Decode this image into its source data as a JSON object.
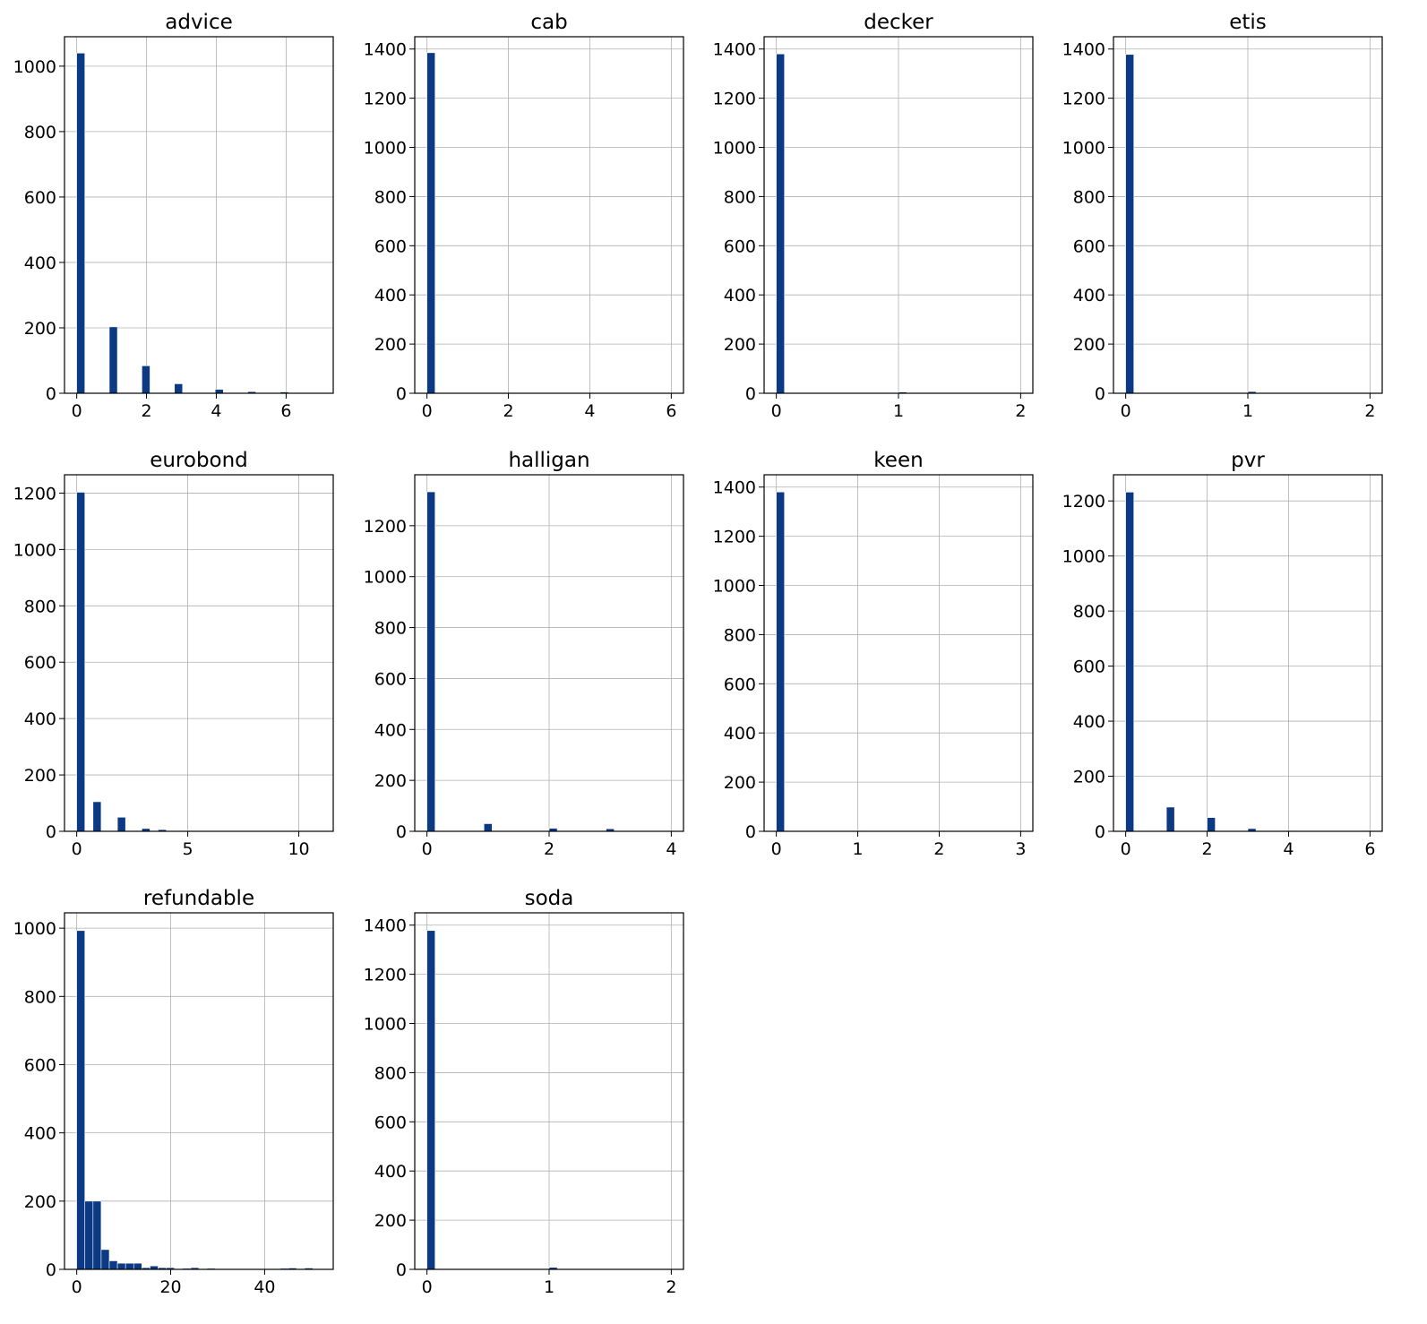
{
  "bar_color": "#0b3984",
  "bar_edge_color": "#ffffff",
  "grid_color": "#b0b0b0",
  "chart_data": [
    {
      "type": "bar",
      "title": "advice",
      "grid": true,
      "xlim": [
        -0.35,
        7.35
      ],
      "ylim": [
        0,
        1090
      ],
      "xticks": [
        0,
        2,
        4,
        6
      ],
      "yticks": [
        0,
        200,
        400,
        600,
        800,
        1000
      ],
      "bin_width": 0.233,
      "bins": [
        {
          "x0": 0.0,
          "count": 1040
        },
        {
          "x0": 0.933,
          "count": 203
        },
        {
          "x0": 1.867,
          "count": 84
        },
        {
          "x0": 2.8,
          "count": 29
        },
        {
          "x0": 3.967,
          "count": 12
        },
        {
          "x0": 4.9,
          "count": 5
        },
        {
          "x0": 5.833,
          "count": 4
        },
        {
          "x0": 6.767,
          "count": 2
        }
      ]
    },
    {
      "type": "bar",
      "title": "cab",
      "grid": true,
      "xlim": [
        -0.3,
        6.3
      ],
      "ylim": [
        0,
        1450
      ],
      "xticks": [
        0,
        2,
        4,
        6
      ],
      "yticks": [
        0,
        200,
        400,
        600,
        800,
        1000,
        1200,
        1400
      ],
      "bin_width": 0.2,
      "bins": [
        {
          "x0": 0.0,
          "count": 1385
        }
      ]
    },
    {
      "type": "bar",
      "title": "decker",
      "grid": true,
      "xlim": [
        -0.1,
        2.1
      ],
      "ylim": [
        0,
        1450
      ],
      "xticks": [
        0,
        1,
        2
      ],
      "yticks": [
        0,
        200,
        400,
        600,
        800,
        1000,
        1200,
        1400
      ],
      "bin_width": 0.0667,
      "bins": [
        {
          "x0": 0.0,
          "count": 1380
        },
        {
          "x0": 1.0,
          "count": 5
        },
        {
          "x0": 1.933,
          "count": 1
        }
      ]
    },
    {
      "type": "bar",
      "title": "etis",
      "grid": true,
      "xlim": [
        -0.1,
        2.1
      ],
      "ylim": [
        0,
        1450
      ],
      "xticks": [
        0,
        1,
        2
      ],
      "yticks": [
        0,
        200,
        400,
        600,
        800,
        1000,
        1200,
        1400
      ],
      "bin_width": 0.0667,
      "bins": [
        {
          "x0": 0.0,
          "count": 1378
        },
        {
          "x0": 1.0,
          "count": 7
        },
        {
          "x0": 1.933,
          "count": 1
        }
      ]
    },
    {
      "type": "bar",
      "title": "eurobond",
      "grid": true,
      "xlim": [
        -0.55,
        11.55
      ],
      "ylim": [
        0,
        1265
      ],
      "xticks": [
        0,
        5,
        10
      ],
      "yticks": [
        0,
        200,
        400,
        600,
        800,
        1000,
        1200
      ],
      "bin_width": 0.367,
      "bins": [
        {
          "x0": 0.0,
          "count": 1203
        },
        {
          "x0": 0.733,
          "count": 105
        },
        {
          "x0": 1.833,
          "count": 50
        },
        {
          "x0": 2.933,
          "count": 10
        },
        {
          "x0": 3.667,
          "count": 6
        },
        {
          "x0": 4.767,
          "count": 2
        },
        {
          "x0": 5.867,
          "count": 1
        },
        {
          "x0": 10.633,
          "count": 1
        }
      ]
    },
    {
      "type": "bar",
      "title": "halligan",
      "grid": true,
      "xlim": [
        -0.2,
        4.2
      ],
      "ylim": [
        0,
        1400
      ],
      "xticks": [
        0,
        2,
        4
      ],
      "yticks": [
        0,
        200,
        400,
        600,
        800,
        1000,
        1200
      ],
      "bin_width": 0.133,
      "bins": [
        {
          "x0": 0.0,
          "count": 1333
        },
        {
          "x0": 0.933,
          "count": 30
        },
        {
          "x0": 2.0,
          "count": 12
        },
        {
          "x0": 2.933,
          "count": 10
        },
        {
          "x0": 3.867,
          "count": 1
        }
      ]
    },
    {
      "type": "bar",
      "title": "keen",
      "grid": true,
      "xlim": [
        -0.15,
        3.15
      ],
      "ylim": [
        0,
        1450
      ],
      "xticks": [
        0,
        1,
        2,
        3
      ],
      "yticks": [
        0,
        200,
        400,
        600,
        800,
        1000,
        1200,
        1400
      ],
      "bin_width": 0.1,
      "bins": [
        {
          "x0": 0.0,
          "count": 1380
        },
        {
          "x0": 1.0,
          "count": 3
        },
        {
          "x0": 2.0,
          "count": 2
        },
        {
          "x0": 2.9,
          "count": 1
        }
      ]
    },
    {
      "type": "bar",
      "title": "pvr",
      "grid": true,
      "xlim": [
        -0.3,
        6.3
      ],
      "ylim": [
        0,
        1295
      ],
      "xticks": [
        0,
        2,
        4,
        6
      ],
      "yticks": [
        0,
        200,
        400,
        600,
        800,
        1000,
        1200
      ],
      "bin_width": 0.2,
      "bins": [
        {
          "x0": 0.0,
          "count": 1232
        },
        {
          "x0": 1.0,
          "count": 88
        },
        {
          "x0": 2.0,
          "count": 50
        },
        {
          "x0": 3.0,
          "count": 10
        },
        {
          "x0": 4.0,
          "count": 2
        },
        {
          "x0": 5.8,
          "count": 2
        }
      ]
    },
    {
      "type": "bar",
      "title": "refundable",
      "grid": true,
      "xlim": [
        -2.6,
        54.6
      ],
      "ylim": [
        0,
        1045
      ],
      "xticks": [
        0,
        20,
        40
      ],
      "yticks": [
        0,
        200,
        400,
        600,
        800,
        1000
      ],
      "bin_width": 1.733,
      "bins": [
        {
          "x0": 0.0,
          "count": 993
        },
        {
          "x0": 1.733,
          "count": 200
        },
        {
          "x0": 3.467,
          "count": 200
        },
        {
          "x0": 5.2,
          "count": 58
        },
        {
          "x0": 6.933,
          "count": 25
        },
        {
          "x0": 8.667,
          "count": 18
        },
        {
          "x0": 10.4,
          "count": 18
        },
        {
          "x0": 12.133,
          "count": 18
        },
        {
          "x0": 13.867,
          "count": 5
        },
        {
          "x0": 15.6,
          "count": 10
        },
        {
          "x0": 17.333,
          "count": 5
        },
        {
          "x0": 19.067,
          "count": 5
        },
        {
          "x0": 20.8,
          "count": 2
        },
        {
          "x0": 22.533,
          "count": 3
        },
        {
          "x0": 24.267,
          "count": 5
        },
        {
          "x0": 26.0,
          "count": 2
        },
        {
          "x0": 27.733,
          "count": 3
        },
        {
          "x0": 43.333,
          "count": 3
        },
        {
          "x0": 45.067,
          "count": 4
        },
        {
          "x0": 48.533,
          "count": 4
        },
        {
          "x0": 50.267,
          "count": 1
        }
      ]
    },
    {
      "type": "bar",
      "title": "soda",
      "grid": true,
      "xlim": [
        -0.1,
        2.1
      ],
      "ylim": [
        0,
        1450
      ],
      "xticks": [
        0,
        1,
        2
      ],
      "yticks": [
        0,
        200,
        400,
        600,
        800,
        1000,
        1200,
        1400
      ],
      "bin_width": 0.0667,
      "bins": [
        {
          "x0": 0.0,
          "count": 1378
        },
        {
          "x0": 1.0,
          "count": 8
        },
        {
          "x0": 1.933,
          "count": 1
        }
      ]
    }
  ]
}
